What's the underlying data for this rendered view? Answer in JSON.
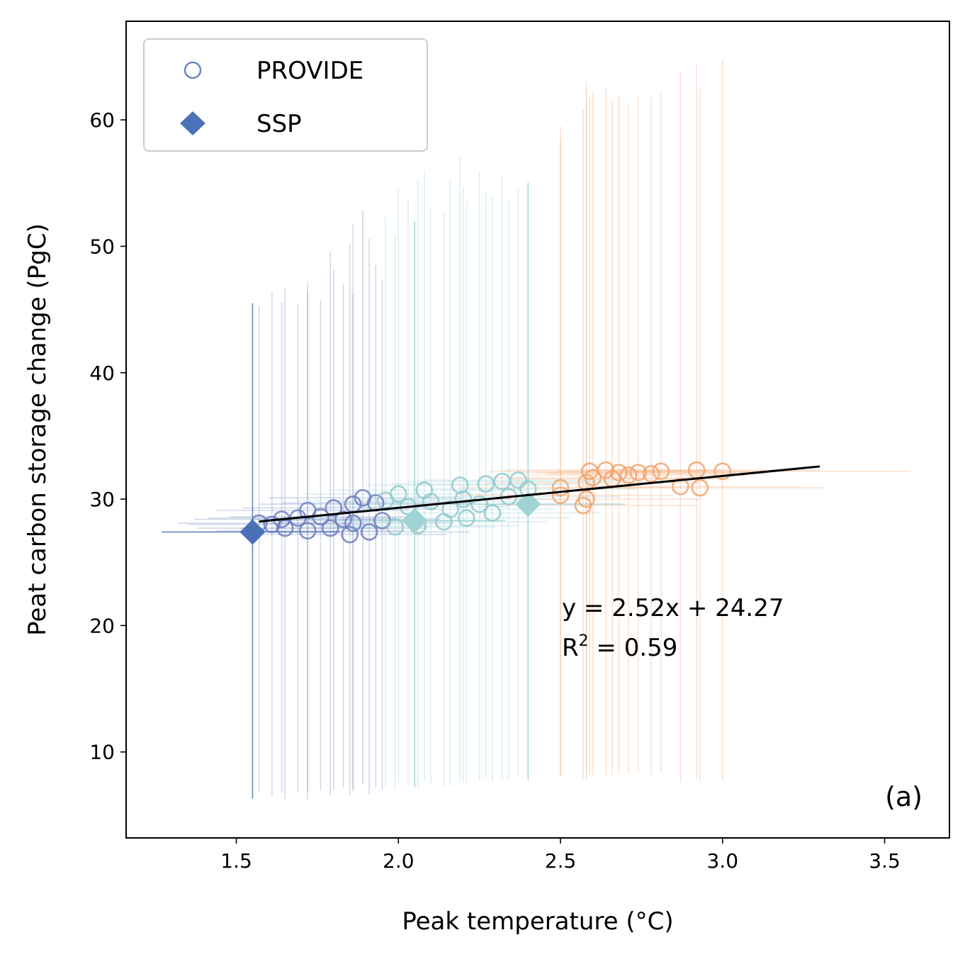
{
  "chart_data": {
    "type": "scatter",
    "xlabel": "Peak temperature (°C)",
    "ylabel": "Peat carbon storage change (PgC)",
    "xlim": [
      1.16,
      3.7
    ],
    "ylim": [
      3.2,
      67.8
    ],
    "xticks": [
      "1.5",
      "2.0",
      "2.5",
      "3.0",
      "3.5"
    ],
    "xtick_values": [
      1.5,
      2.0,
      2.5,
      3.0,
      3.5
    ],
    "yticks": [
      "10",
      "20",
      "30",
      "40",
      "50",
      "60"
    ],
    "ytick_values": [
      10,
      20,
      30,
      40,
      50,
      60
    ],
    "grid": false,
    "legend_position": "top-left",
    "legend": [
      {
        "label": "PROVIDE",
        "marker": "open-circle",
        "color": "#6c87c0"
      },
      {
        "label": "SSP",
        "marker": "diamond",
        "color": "#4c72b9"
      }
    ],
    "annotation_line1": "y = 2.52x + 24.27",
    "annotation_line2_prefix": "R",
    "annotation_line2_sup": "2",
    "annotation_line2_suffix": " = 0.59",
    "panel_label": "(a)",
    "fit": {
      "slope": 2.52,
      "intercept": 24.27,
      "x_range": [
        1.57,
        3.3
      ],
      "color": "#000000"
    },
    "colors": {
      "group_low": "#6b7fbe",
      "group_mid": "#8fc9cc",
      "group_high": "#f2a36c",
      "ssp_low": "#4a70b8",
      "ssp_mid": "#9fd3d6"
    },
    "series": [
      {
        "name": "PROVIDE",
        "marker": "open-circle",
        "points": [
          {
            "x": 1.57,
            "y": 28.1,
            "ylo": 6.9,
            "yhi": 45.3,
            "xlo": 1.32,
            "xhi": 1.85,
            "group": "low"
          },
          {
            "x": 1.61,
            "y": 28.0,
            "ylo": 6.6,
            "yhi": 46.3,
            "xlo": 1.35,
            "xhi": 1.9,
            "group": "low"
          },
          {
            "x": 1.64,
            "y": 28.4,
            "ylo": 6.8,
            "yhi": 45.6,
            "xlo": 1.37,
            "xhi": 1.93,
            "group": "low"
          },
          {
            "x": 1.65,
            "y": 27.7,
            "ylo": 6.3,
            "yhi": 46.7,
            "xlo": 1.38,
            "xhi": 1.95,
            "group": "low"
          },
          {
            "x": 1.69,
            "y": 28.5,
            "ylo": 6.8,
            "yhi": 45.4,
            "xlo": 1.41,
            "xhi": 1.99,
            "group": "low"
          },
          {
            "x": 1.72,
            "y": 27.5,
            "ylo": 6.2,
            "yhi": 46.4,
            "xlo": 1.44,
            "xhi": 2.02,
            "group": "low"
          },
          {
            "x": 1.72,
            "y": 29.1,
            "ylo": 6.9,
            "yhi": 47.1,
            "xlo": 1.44,
            "xhi": 2.03,
            "group": "low"
          },
          {
            "x": 1.76,
            "y": 28.6,
            "ylo": 7.0,
            "yhi": 45.8,
            "xlo": 1.48,
            "xhi": 2.07,
            "group": "low"
          },
          {
            "x": 1.79,
            "y": 27.7,
            "ylo": 6.6,
            "yhi": 49.6,
            "xlo": 1.51,
            "xhi": 2.09,
            "group": "low"
          },
          {
            "x": 1.8,
            "y": 29.3,
            "ylo": 7.0,
            "yhi": 48.1,
            "xlo": 1.52,
            "xhi": 2.11,
            "group": "low"
          },
          {
            "x": 1.83,
            "y": 28.4,
            "ylo": 7.2,
            "yhi": 47.0,
            "xlo": 1.55,
            "xhi": 2.13,
            "group": "low"
          },
          {
            "x": 1.85,
            "y": 27.2,
            "ylo": 6.6,
            "yhi": 50.2,
            "xlo": 1.56,
            "xhi": 2.15,
            "group": "low"
          },
          {
            "x": 1.86,
            "y": 29.6,
            "ylo": 7.1,
            "yhi": 51.8,
            "xlo": 1.57,
            "xhi": 2.16,
            "group": "low"
          },
          {
            "x": 1.86,
            "y": 28.1,
            "ylo": 6.9,
            "yhi": 46.2,
            "xlo": 1.58,
            "xhi": 2.17,
            "group": "low"
          },
          {
            "x": 1.89,
            "y": 30.1,
            "ylo": 7.4,
            "yhi": 52.9,
            "xlo": 1.6,
            "xhi": 2.2,
            "group": "low"
          },
          {
            "x": 1.91,
            "y": 27.4,
            "ylo": 6.7,
            "yhi": 50.6,
            "xlo": 1.62,
            "xhi": 2.22,
            "group": "low"
          },
          {
            "x": 1.93,
            "y": 29.7,
            "ylo": 7.2,
            "yhi": 48.5,
            "xlo": 1.64,
            "xhi": 2.24,
            "group": "low"
          },
          {
            "x": 1.95,
            "y": 28.3,
            "ylo": 7.0,
            "yhi": 47.3,
            "xlo": 1.66,
            "xhi": 2.26,
            "group": "low"
          },
          {
            "x": 1.96,
            "y": 29.9,
            "ylo": 7.3,
            "yhi": 52.3,
            "xlo": 1.68,
            "xhi": 2.28,
            "group": "mid"
          },
          {
            "x": 1.99,
            "y": 27.8,
            "ylo": 7.0,
            "yhi": 50.9,
            "xlo": 1.7,
            "xhi": 2.3,
            "group": "mid"
          },
          {
            "x": 2.0,
            "y": 30.4,
            "ylo": 7.5,
            "yhi": 54.7,
            "xlo": 1.71,
            "xhi": 2.31,
            "group": "mid"
          },
          {
            "x": 2.03,
            "y": 29.4,
            "ylo": 7.3,
            "yhi": 53.7,
            "xlo": 1.74,
            "xhi": 2.34,
            "group": "mid"
          },
          {
            "x": 2.06,
            "y": 27.9,
            "ylo": 7.1,
            "yhi": 55.4,
            "xlo": 1.77,
            "xhi": 2.37,
            "group": "mid"
          },
          {
            "x": 2.08,
            "y": 30.7,
            "ylo": 7.7,
            "yhi": 56.0,
            "xlo": 1.79,
            "xhi": 2.4,
            "group": "mid"
          },
          {
            "x": 2.1,
            "y": 29.8,
            "ylo": 7.4,
            "yhi": 53.0,
            "xlo": 1.81,
            "xhi": 2.42,
            "group": "mid"
          },
          {
            "x": 2.14,
            "y": 28.2,
            "ylo": 7.3,
            "yhi": 52.6,
            "xlo": 1.85,
            "xhi": 2.46,
            "group": "mid"
          },
          {
            "x": 2.16,
            "y": 29.2,
            "ylo": 7.3,
            "yhi": 55.2,
            "xlo": 1.87,
            "xhi": 2.48,
            "group": "mid"
          },
          {
            "x": 2.19,
            "y": 31.1,
            "ylo": 7.8,
            "yhi": 57.1,
            "xlo": 1.9,
            "xhi": 2.51,
            "group": "mid"
          },
          {
            "x": 2.2,
            "y": 30.0,
            "ylo": 7.6,
            "yhi": 54.7,
            "xlo": 1.91,
            "xhi": 2.52,
            "group": "mid"
          },
          {
            "x": 2.21,
            "y": 28.5,
            "ylo": 7.4,
            "yhi": 53.5,
            "xlo": 1.92,
            "xhi": 2.53,
            "group": "mid"
          },
          {
            "x": 2.25,
            "y": 29.6,
            "ylo": 7.7,
            "yhi": 55.9,
            "xlo": 1.96,
            "xhi": 2.58,
            "group": "mid"
          },
          {
            "x": 2.27,
            "y": 31.2,
            "ylo": 7.9,
            "yhi": 54.3,
            "xlo": 1.98,
            "xhi": 2.6,
            "group": "mid"
          },
          {
            "x": 2.29,
            "y": 28.9,
            "ylo": 7.6,
            "yhi": 53.9,
            "xlo": 2.0,
            "xhi": 2.62,
            "group": "mid"
          },
          {
            "x": 2.32,
            "y": 31.4,
            "ylo": 7.8,
            "yhi": 55.7,
            "xlo": 2.03,
            "xhi": 2.66,
            "group": "mid"
          },
          {
            "x": 2.34,
            "y": 30.2,
            "ylo": 7.9,
            "yhi": 53.8,
            "xlo": 2.05,
            "xhi": 2.68,
            "group": "mid"
          },
          {
            "x": 2.37,
            "y": 31.5,
            "ylo": 8.0,
            "yhi": 54.5,
            "xlo": 2.08,
            "xhi": 2.71,
            "group": "mid"
          },
          {
            "x": 2.4,
            "y": 30.8,
            "ylo": 7.9,
            "yhi": 55.1,
            "xlo": 2.1,
            "xhi": 2.74,
            "group": "mid"
          },
          {
            "x": 2.5,
            "y": 30.9,
            "ylo": 8.0,
            "yhi": 58.3,
            "xlo": 2.19,
            "xhi": 2.84,
            "group": "high"
          },
          {
            "x": 2.5,
            "y": 30.3,
            "ylo": 8.1,
            "yhi": 59.5,
            "xlo": 2.19,
            "xhi": 2.85,
            "group": "high"
          },
          {
            "x": 2.57,
            "y": 29.5,
            "ylo": 7.9,
            "yhi": 60.8,
            "xlo": 2.26,
            "xhi": 2.92,
            "group": "high"
          },
          {
            "x": 2.58,
            "y": 31.3,
            "ylo": 8.1,
            "yhi": 62.5,
            "xlo": 2.27,
            "xhi": 2.93,
            "group": "high"
          },
          {
            "x": 2.58,
            "y": 30.0,
            "ylo": 7.8,
            "yhi": 63.0,
            "xlo": 2.27,
            "xhi": 2.93,
            "group": "high"
          },
          {
            "x": 2.59,
            "y": 32.2,
            "ylo": 8.3,
            "yhi": 61.7,
            "xlo": 2.28,
            "xhi": 2.95,
            "group": "high"
          },
          {
            "x": 2.6,
            "y": 31.7,
            "ylo": 8.1,
            "yhi": 62.1,
            "xlo": 2.29,
            "xhi": 2.96,
            "group": "high"
          },
          {
            "x": 2.64,
            "y": 32.3,
            "ylo": 8.2,
            "yhi": 62.6,
            "xlo": 2.33,
            "xhi": 3.0,
            "group": "high"
          },
          {
            "x": 2.66,
            "y": 31.6,
            "ylo": 8.2,
            "yhi": 61.6,
            "xlo": 2.35,
            "xhi": 3.02,
            "group": "high"
          },
          {
            "x": 2.68,
            "y": 32.1,
            "ylo": 8.3,
            "yhi": 62.0,
            "xlo": 2.37,
            "xhi": 3.04,
            "group": "high"
          },
          {
            "x": 2.71,
            "y": 31.9,
            "ylo": 8.3,
            "yhi": 61.2,
            "xlo": 2.4,
            "xhi": 3.07,
            "group": "high"
          },
          {
            "x": 2.74,
            "y": 32.1,
            "ylo": 8.4,
            "yhi": 61.9,
            "xlo": 2.43,
            "xhi": 3.1,
            "group": "high"
          },
          {
            "x": 2.78,
            "y": 32.0,
            "ylo": 8.2,
            "yhi": 61.8,
            "xlo": 2.46,
            "xhi": 3.14,
            "group": "high"
          },
          {
            "x": 2.81,
            "y": 32.2,
            "ylo": 8.4,
            "yhi": 62.1,
            "xlo": 2.49,
            "xhi": 3.18,
            "group": "high"
          },
          {
            "x": 2.87,
            "y": 31.0,
            "ylo": 7.6,
            "yhi": 63.8,
            "xlo": 2.55,
            "xhi": 3.24,
            "group": "high"
          },
          {
            "x": 2.92,
            "y": 32.3,
            "ylo": 7.8,
            "yhi": 64.5,
            "xlo": 2.6,
            "xhi": 3.3,
            "group": "high"
          },
          {
            "x": 2.93,
            "y": 30.9,
            "ylo": 7.7,
            "yhi": 62.4,
            "xlo": 2.61,
            "xhi": 3.31,
            "group": "high"
          },
          {
            "x": 3.0,
            "y": 32.2,
            "ylo": 7.8,
            "yhi": 64.7,
            "xlo": 2.68,
            "xhi": 3.58,
            "group": "high"
          }
        ]
      },
      {
        "name": "SSP",
        "marker": "diamond",
        "points": [
          {
            "x": 1.55,
            "y": 27.4,
            "ylo": 6.3,
            "yhi": 45.5,
            "xlo": 1.27,
            "xhi": 1.82,
            "group": "low"
          },
          {
            "x": 2.05,
            "y": 28.3,
            "ylo": 7.2,
            "yhi": 52.0,
            "xlo": 1.78,
            "xhi": 2.33,
            "group": "mid"
          },
          {
            "x": 2.4,
            "y": 29.6,
            "ylo": 7.8,
            "yhi": 55.0,
            "xlo": 2.1,
            "xhi": 2.7,
            "group": "mid"
          }
        ]
      }
    ]
  }
}
